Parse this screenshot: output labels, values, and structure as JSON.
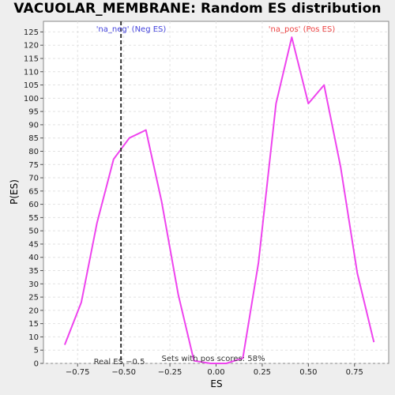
{
  "chart_data": {
    "type": "line",
    "title": "VACUOLAR_MEMBRANE: Random ES distribution",
    "xlabel": "ES",
    "ylabel": "P(ES)",
    "xlim": [
      -0.935,
      0.935
    ],
    "ylim": [
      0,
      129
    ],
    "x_ticks": [
      -0.75,
      -0.5,
      -0.25,
      0.0,
      0.25,
      0.5,
      0.75
    ],
    "x_tick_labels": [
      "−0.75",
      "−0.50",
      "−0.25",
      "0.00",
      "0.25",
      "0.50",
      "0.75"
    ],
    "y_ticks": [
      0,
      5,
      10,
      15,
      20,
      25,
      30,
      35,
      40,
      45,
      50,
      55,
      60,
      65,
      70,
      75,
      80,
      85,
      90,
      95,
      100,
      105,
      110,
      115,
      120,
      125
    ],
    "grid": true,
    "series": [
      {
        "color": "#ee44ee",
        "x": [
          -0.82,
          -0.73,
          -0.645,
          -0.555,
          -0.47,
          -0.38,
          -0.295,
          -0.205,
          -0.12,
          -0.03,
          0.055,
          0.145,
          0.23,
          0.325,
          0.41,
          0.5,
          0.585,
          0.675,
          0.765,
          0.855
        ],
        "y": [
          7,
          23,
          53,
          77,
          85,
          88,
          61,
          26,
          1,
          0,
          0,
          2,
          38,
          98,
          123,
          98,
          105,
          74,
          34,
          8
        ]
      }
    ],
    "reference_line": {
      "x": -0.515,
      "style": "dashed",
      "color": "#333333"
    },
    "annotations": {
      "neg_label": "'na_neg' (Neg ES)",
      "neg_color": "#4444dd",
      "pos_label": "'na_pos' (Pos ES)",
      "pos_color": "#ee4444",
      "real_es": "Real ES −0.5",
      "pos_scores": "Sets with pos scores: 58%"
    }
  }
}
